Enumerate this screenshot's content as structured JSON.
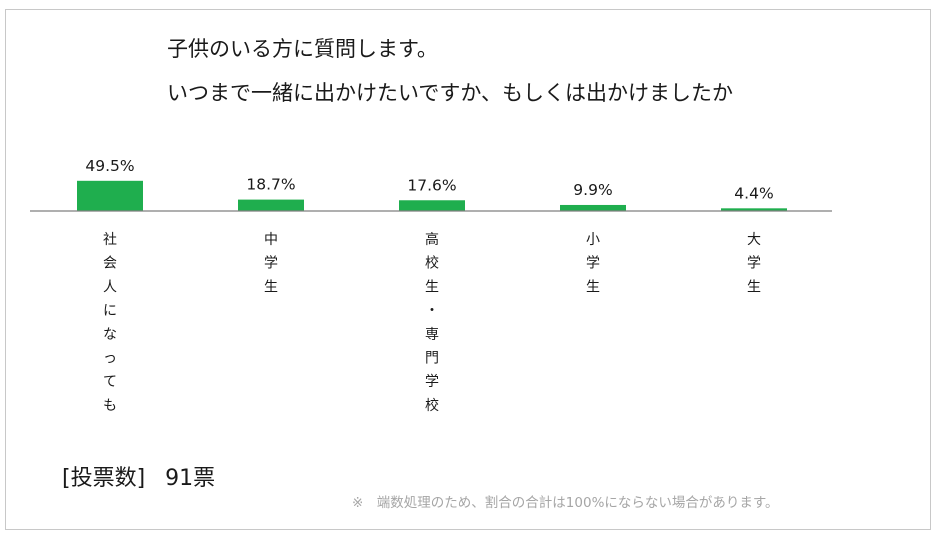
{
  "title": {
    "line1": "子供のいる方に質問します。",
    "line2": "いつまで一緒に出かけたいですか、もしくは出かけましたか"
  },
  "colors": {
    "bar": "#1fae4e",
    "axis": "#7f7f7f",
    "note": "#a6a6a6"
  },
  "chart_data": {
    "type": "bar",
    "unit": "%",
    "categories": [
      "社会人になっても",
      "中学生",
      "高校生・専門学校",
      "小学生",
      "大学生"
    ],
    "values": [
      49.5,
      18.7,
      17.6,
      9.9,
      4.4
    ],
    "data_labels": [
      "49.5%",
      "18.7%",
      "17.6%",
      "9.9%",
      "4.4%"
    ],
    "label_orientation": "vertical",
    "ylim": [
      0,
      100
    ],
    "grid": false,
    "legend": "none"
  },
  "footer": {
    "votes_label": "[投票数]",
    "votes_value": "91票",
    "note": "※　端数処理のため、割合の合計は100%にならない場合があります。"
  }
}
